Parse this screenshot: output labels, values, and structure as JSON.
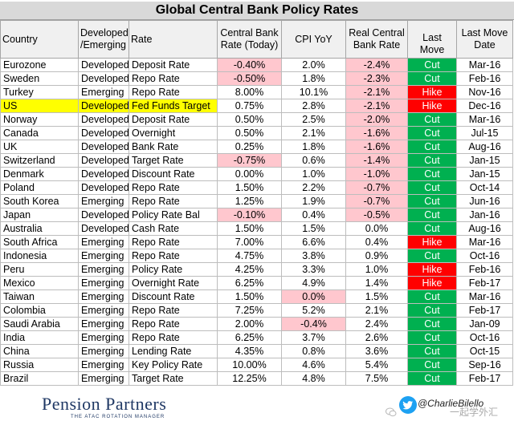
{
  "title": "Global Central Bank Policy Rates",
  "headers": {
    "country": "Country",
    "dev_line1": "Developed",
    "dev_line2": "/Emerging",
    "rate": "Rate",
    "cb_line1": "Central Bank",
    "cb_line2": "Rate (Today)",
    "cpi": "CPI YoY",
    "real_line1": "Real Central",
    "real_line2": "Bank Rate",
    "last_move": "Last Move",
    "date_line1": "Last Move",
    "date_line2": "Date"
  },
  "rows": [
    {
      "country": "Eurozone",
      "dev": "Developed",
      "rate": "Deposit Rate",
      "cb": "-0.40%",
      "cpi": "2.0%",
      "real": "-2.4%",
      "move": "Cut",
      "date": "Mar-16"
    },
    {
      "country": "Sweden",
      "dev": "Developed",
      "rate": "Repo Rate",
      "cb": "-0.50%",
      "cpi": "1.8%",
      "real": "-2.3%",
      "move": "Cut",
      "date": "Feb-16"
    },
    {
      "country": "Turkey",
      "dev": "Emerging",
      "rate": "Repo Rate",
      "cb": "8.00%",
      "cpi": "10.1%",
      "real": "-2.1%",
      "move": "Hike",
      "date": "Nov-16"
    },
    {
      "country": "US",
      "dev": "Developed",
      "rate": "Fed Funds Target",
      "cb": "0.75%",
      "cpi": "2.8%",
      "real": "-2.1%",
      "move": "Hike",
      "date": "Dec-16"
    },
    {
      "country": "Norway",
      "dev": "Developed",
      "rate": "Deposit Rate",
      "cb": "0.50%",
      "cpi": "2.5%",
      "real": "-2.0%",
      "move": "Cut",
      "date": "Mar-16"
    },
    {
      "country": "Canada",
      "dev": "Developed",
      "rate": "Overnight",
      "cb": "0.50%",
      "cpi": "2.1%",
      "real": "-1.6%",
      "move": "Cut",
      "date": "Jul-15"
    },
    {
      "country": "UK",
      "dev": "Developed",
      "rate": "Bank Rate",
      "cb": "0.25%",
      "cpi": "1.8%",
      "real": "-1.6%",
      "move": "Cut",
      "date": "Aug-16"
    },
    {
      "country": "Switzerland",
      "dev": "Developed",
      "rate": "Target Rate",
      "cb": "-0.75%",
      "cpi": "0.6%",
      "real": "-1.4%",
      "move": "Cut",
      "date": "Jan-15"
    },
    {
      "country": "Denmark",
      "dev": "Developed",
      "rate": "Discount Rate",
      "cb": "0.00%",
      "cpi": "1.0%",
      "real": "-1.0%",
      "move": "Cut",
      "date": "Jan-15"
    },
    {
      "country": "Poland",
      "dev": "Developed",
      "rate": "Repo Rate",
      "cb": "1.50%",
      "cpi": "2.2%",
      "real": "-0.7%",
      "move": "Cut",
      "date": "Oct-14"
    },
    {
      "country": "South Korea",
      "dev": "Emerging",
      "rate": "Repo Rate",
      "cb": "1.25%",
      "cpi": "1.9%",
      "real": "-0.7%",
      "move": "Cut",
      "date": "Jun-16"
    },
    {
      "country": "Japan",
      "dev": "Developed",
      "rate": "Policy Rate Bal",
      "cb": "-0.10%",
      "cpi": "0.4%",
      "real": "-0.5%",
      "move": "Cut",
      "date": "Jan-16"
    },
    {
      "country": "Australia",
      "dev": "Developed",
      "rate": "Cash Rate",
      "cb": "1.50%",
      "cpi": "1.5%",
      "real": "0.0%",
      "move": "Cut",
      "date": "Aug-16"
    },
    {
      "country": "South Africa",
      "dev": "Emerging",
      "rate": "Repo Rate",
      "cb": "7.00%",
      "cpi": "6.6%",
      "real": "0.4%",
      "move": "Hike",
      "date": "Mar-16"
    },
    {
      "country": "Indonesia",
      "dev": "Emerging",
      "rate": "Repo Rate",
      "cb": "4.75%",
      "cpi": "3.8%",
      "real": "0.9%",
      "move": "Cut",
      "date": "Oct-16"
    },
    {
      "country": "Peru",
      "dev": "Emerging",
      "rate": "Policy Rate",
      "cb": "4.25%",
      "cpi": "3.3%",
      "real": "1.0%",
      "move": "Hike",
      "date": "Feb-16"
    },
    {
      "country": "Mexico",
      "dev": "Emerging",
      "rate": "Overnight Rate",
      "cb": "6.25%",
      "cpi": "4.9%",
      "real": "1.4%",
      "move": "Hike",
      "date": "Feb-17"
    },
    {
      "country": "Taiwan",
      "dev": "Emerging",
      "rate": "Discount Rate",
      "cb": "1.50%",
      "cpi": "0.0%",
      "real": "1.5%",
      "move": "Cut",
      "date": "Mar-16"
    },
    {
      "country": "Colombia",
      "dev": "Emerging",
      "rate": "Repo Rate",
      "cb": "7.25%",
      "cpi": "5.2%",
      "real": "2.1%",
      "move": "Cut",
      "date": "Feb-17"
    },
    {
      "country": "Saudi Arabia",
      "dev": "Emerging",
      "rate": "Repo Rate",
      "cb": "2.00%",
      "cpi": "-0.4%",
      "real": "2.4%",
      "move": "Cut",
      "date": "Jan-09"
    },
    {
      "country": "India",
      "dev": "Emerging",
      "rate": "Repo Rate",
      "cb": "6.25%",
      "cpi": "3.7%",
      "real": "2.6%",
      "move": "Cut",
      "date": "Oct-16"
    },
    {
      "country": "China",
      "dev": "Emerging",
      "rate": "Lending Rate",
      "cb": "4.35%",
      "cpi": "0.8%",
      "real": "3.6%",
      "move": "Cut",
      "date": "Oct-15"
    },
    {
      "country": "Russia",
      "dev": "Emerging",
      "rate": "Key Policy Rate",
      "cb": "10.00%",
      "cpi": "4.6%",
      "real": "5.4%",
      "move": "Cut",
      "date": "Sep-16"
    },
    {
      "country": "Brazil",
      "dev": "Emerging",
      "rate": "Target Rate",
      "cb": "12.25%",
      "cpi": "4.8%",
      "real": "7.5%",
      "move": "Cut",
      "date": "Feb-17"
    }
  ],
  "highlight_country": "US",
  "colors": {
    "cut": "#00b050",
    "hike": "#ff0000",
    "negative_fill": "#ffc7ce",
    "highlight": "#ffff00"
  },
  "footer": {
    "logo_name": "Pension Partners",
    "logo_tagline": "THE ATAC ROTATION MANAGER",
    "twitter_icon": "twitter-bird-icon",
    "handle": "@CharlieBilello",
    "watermark_icon": "wechat-icon",
    "watermark_text": "一起学外汇"
  }
}
